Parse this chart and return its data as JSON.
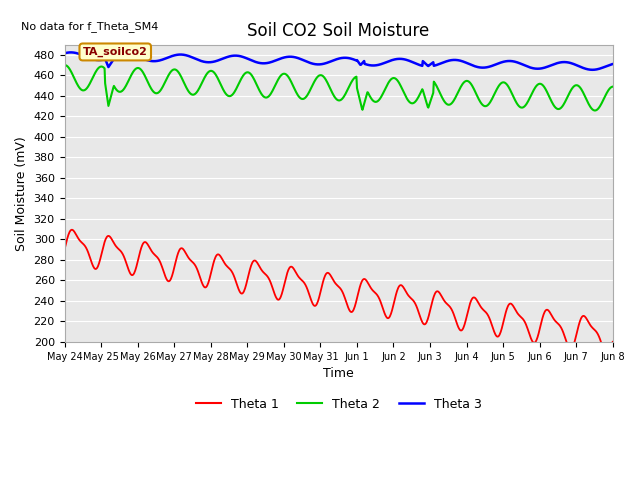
{
  "title": "Soil CO2 Soil Moisture",
  "no_data_text": "No data for f_Theta_SM4",
  "annotation_text": "TA_soilco2",
  "ylabel": "Soil Moisture (mV)",
  "xlabel": "Time",
  "ylim": [
    200,
    490
  ],
  "yticks": [
    200,
    220,
    240,
    260,
    280,
    300,
    320,
    340,
    360,
    380,
    400,
    420,
    440,
    460,
    480
  ],
  "xtick_labels": [
    "May 24",
    "May 25",
    "May 26",
    "May 27",
    "May 28",
    "May 29",
    "May 30",
    "May 31",
    "Jun 1",
    "Jun 2",
    "Jun 3",
    "Jun 4",
    "Jun 5",
    "Jun 6",
    "Jun 7",
    "Jun 8"
  ],
  "colors": {
    "theta1": "#ff0000",
    "theta2": "#00cc00",
    "theta3": "#0000ff",
    "plot_bg": "#e8e8e8",
    "fig_bg": "#ffffff",
    "annotation_bg": "#ffffcc",
    "annotation_border": "#cc8800",
    "annotation_text": "#880000",
    "grid": "#ffffff"
  },
  "legend": [
    "Theta 1",
    "Theta 2",
    "Theta 3"
  ],
  "title_fontsize": 12,
  "axis_label_fontsize": 9,
  "tick_fontsize": 8
}
